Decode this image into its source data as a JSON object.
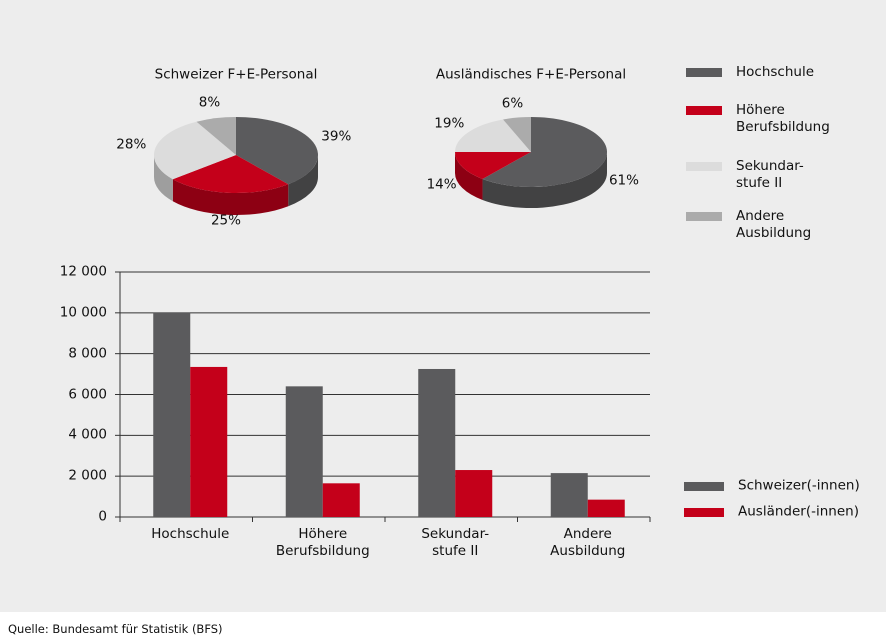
{
  "source": "Quelle: Bundesamt für Statistik (BFS)",
  "pie_legend": {
    "categories": [
      "Hochschule",
      "Höhere\nBerufsbildung",
      "Sekundar-\nstufe II",
      "Andere\nAusbildung"
    ],
    "colors": [
      "#5b5b5d",
      "#c4001a",
      "#dcdcdc",
      "#ababab"
    ]
  },
  "chart_data": [
    {
      "type": "pie",
      "title": "Schweizer F+E-Personal",
      "values": [
        39,
        25,
        28,
        8
      ],
      "value_labels": [
        "39%",
        "25%",
        "28%",
        "8%"
      ]
    },
    {
      "type": "pie",
      "title": "Ausländisches F+E-Personal",
      "values": [
        61,
        14,
        19,
        6
      ],
      "value_labels": [
        "61%",
        "14%",
        "19%",
        "6%"
      ]
    },
    {
      "type": "bar",
      "categories": [
        "Hochschule",
        "Höhere\nBerufsbildung",
        "Sekundar-\nstufe II",
        "Andere\nAusbildung"
      ],
      "series": [
        {
          "name": "Schweizer(-innen)",
          "color": "#5b5b5d",
          "values": [
            10000,
            6400,
            7250,
            2150
          ]
        },
        {
          "name": "Ausländer(-innen)",
          "color": "#c4001a",
          "values": [
            7350,
            1650,
            2300,
            850
          ]
        }
      ],
      "ylim": [
        0,
        12000
      ],
      "yticks": [
        0,
        {
          "value": 2000,
          "label": "2 000"
        },
        {
          "value": 4000,
          "label": "4 000"
        },
        {
          "value": 6000,
          "label": "6 000"
        },
        {
          "value": 8000,
          "label": "8 000"
        },
        {
          "value": 10000,
          "label": "10 000"
        },
        {
          "value": 12000,
          "label": "12 000"
        }
      ],
      "grid": true
    }
  ]
}
